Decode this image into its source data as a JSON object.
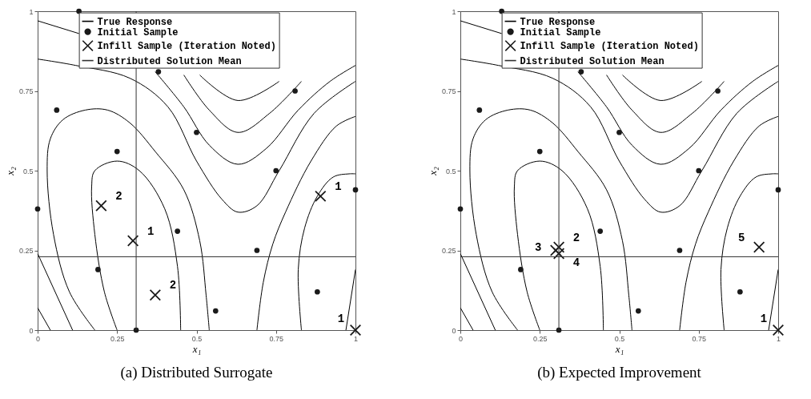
{
  "chart_data": [
    {
      "type": "scatter",
      "title": "(a) Distributed Surrogate",
      "xlabel": "x₁",
      "ylabel": "x₂",
      "xlim": [
        0,
        1
      ],
      "ylim": [
        0,
        1
      ],
      "xticks": [
        0,
        0.25,
        0.5,
        0.75,
        1
      ],
      "yticks": [
        0,
        0.25,
        0.5,
        0.75,
        1
      ],
      "grid": false,
      "legend": "top",
      "series": [
        {
          "name": "True Response",
          "type": "line",
          "color": "#000000",
          "x": [
            0.18,
            0.1,
            0.05,
            0.03,
            0.04,
            0.08,
            0.15,
            0.22,
            0.29,
            0.37,
            0.46,
            0.51,
            0.53,
            0.54
          ],
          "values": [
            0,
            0.12,
            0.3,
            0.5,
            0.6,
            0.66,
            0.69,
            0.69,
            0.65,
            0.56,
            0.44,
            0.28,
            0.11,
            0
          ]
        },
        {
          "type": "line",
          "color": "#000000",
          "x": [
            0.25,
            0.21,
            0.18,
            0.17,
            0.18,
            0.25,
            0.32,
            0.4,
            0.44,
            0.45
          ],
          "values": [
            0,
            0.12,
            0.3,
            0.45,
            0.5,
            0.53,
            0.5,
            0.38,
            0.2,
            0
          ]
        },
        {
          "type": "line",
          "color": "#000000",
          "x": [
            0,
            0.11
          ],
          "values": [
            0.24,
            0
          ]
        },
        {
          "type": "line",
          "color": "#000000",
          "x": [
            0,
            0.04
          ],
          "values": [
            0.07,
            0
          ]
        },
        {
          "type": "line",
          "color": "#000000",
          "x": [
            0.83,
            0.82,
            0.84,
            0.88,
            0.93,
            0.98,
            1
          ],
          "values": [
            0,
            0.19,
            0.32,
            0.42,
            0.48,
            0.49,
            0.49
          ]
        },
        {
          "type": "line",
          "color": "#000000",
          "x": [
            1,
            0.97
          ],
          "values": [
            0.19,
            0
          ]
        },
        {
          "type": "line",
          "color": "#000000",
          "x": [
            0.69,
            0.71,
            0.74,
            0.78,
            0.86,
            0.94,
            1
          ],
          "values": [
            0,
            0.15,
            0.27,
            0.37,
            0.53,
            0.64,
            0.67
          ]
        },
        {
          "type": "line",
          "color": "#000000",
          "x": [
            0,
            0.12,
            0.29,
            0.41,
            0.5,
            0.58,
            0.63,
            0.69,
            0.76,
            0.87,
            1
          ],
          "values": [
            0.85,
            0.83,
            0.79,
            0.7,
            0.53,
            0.41,
            0.37,
            0.39,
            0.5,
            0.68,
            0.78
          ]
        },
        {
          "type": "line",
          "color": "#000000",
          "x": [
            0.37,
            0.46,
            0.54,
            0.63,
            0.72,
            0.82,
            0.92,
            1
          ],
          "values": [
            0.81,
            0.7,
            0.58,
            0.52,
            0.57,
            0.69,
            0.78,
            0.83
          ]
        },
        {
          "type": "line",
          "color": "#000000",
          "x": [
            0.46,
            0.54,
            0.63,
            0.73,
            0.83
          ],
          "values": [
            0.8,
            0.69,
            0.62,
            0.68,
            0.78
          ]
        },
        {
          "type": "line",
          "color": "#000000",
          "x": [
            0.51,
            0.63,
            0.76
          ],
          "values": [
            0.8,
            0.72,
            0.78
          ]
        },
        {
          "type": "line",
          "color": "#000000",
          "x": [
            0,
            0.13
          ],
          "values": [
            0.97,
            0.93
          ]
        },
        {
          "name": "Initial Sample",
          "type": "scatter",
          "marker": "circle",
          "color": "#1a1a1a",
          "x": [
            0.13,
            0.06,
            0.25,
            0,
            0.19,
            0.31,
            0.44,
            0.5,
            0.56,
            0.69,
            0.75,
            0.81,
            0.88,
            1,
            0.38
          ],
          "values": [
            1,
            0.69,
            0.56,
            0.38,
            0.19,
            0,
            0.31,
            0.62,
            0.06,
            0.25,
            0.5,
            0.75,
            0.12,
            0.44,
            0.81
          ]
        },
        {
          "name": "Infill Sample (Iteration Noted)",
          "type": "scatter",
          "marker": "cross",
          "color": "#1a1a1a",
          "x": [
            0.2,
            0.3,
            0.37,
            0.89,
            1
          ],
          "values": [
            0.39,
            0.28,
            0.11,
            0.42,
            0
          ]
        },
        {
          "name": "Distributed Solution Mean",
          "type": "line",
          "color": "#333333",
          "x": [
            0.31,
            0.31
          ],
          "values": [
            0,
            1
          ]
        },
        {
          "type": "line",
          "color": "#333333",
          "x": [
            0,
            1
          ],
          "values": [
            0.23,
            0.23
          ]
        }
      ],
      "annotations": [
        {
          "text": "2",
          "x": 0.2,
          "y": 0.39
        },
        {
          "text": "1",
          "x": 0.3,
          "y": 0.28
        },
        {
          "text": "2",
          "x": 0.37,
          "y": 0.11
        },
        {
          "text": "1",
          "x": 0.89,
          "y": 0.42
        },
        {
          "text": "1",
          "x": 1,
          "y": 0
        }
      ]
    },
    {
      "type": "scatter",
      "title": "(b) Expected Improvement",
      "xlabel": "x₁",
      "ylabel": "x₂",
      "xlim": [
        0,
        1
      ],
      "ylim": [
        0,
        1
      ],
      "xticks": [
        0,
        0.25,
        0.5,
        0.75,
        1
      ],
      "yticks": [
        0,
        0.25,
        0.5,
        0.75,
        1
      ],
      "grid": false,
      "legend": "top",
      "series": [
        {
          "name": "True Response",
          "type": "line",
          "color": "#000000",
          "x": [
            0.18,
            0.1,
            0.05,
            0.03,
            0.04,
            0.08,
            0.15,
            0.22,
            0.29,
            0.37,
            0.46,
            0.51,
            0.53,
            0.54
          ],
          "values": [
            0,
            0.12,
            0.3,
            0.5,
            0.6,
            0.66,
            0.69,
            0.69,
            0.65,
            0.56,
            0.44,
            0.28,
            0.11,
            0
          ]
        },
        {
          "type": "line",
          "color": "#000000",
          "x": [
            0.25,
            0.21,
            0.18,
            0.17,
            0.18,
            0.25,
            0.32,
            0.4,
            0.44,
            0.45
          ],
          "values": [
            0,
            0.12,
            0.3,
            0.45,
            0.5,
            0.53,
            0.5,
            0.38,
            0.2,
            0
          ]
        },
        {
          "type": "line",
          "color": "#000000",
          "x": [
            0,
            0.11
          ],
          "values": [
            0.24,
            0
          ]
        },
        {
          "type": "line",
          "color": "#000000",
          "x": [
            0,
            0.04
          ],
          "values": [
            0.07,
            0
          ]
        },
        {
          "type": "line",
          "color": "#000000",
          "x": [
            0.83,
            0.82,
            0.84,
            0.88,
            0.93,
            0.98,
            1
          ],
          "values": [
            0,
            0.19,
            0.32,
            0.42,
            0.48,
            0.49,
            0.49
          ]
        },
        {
          "type": "line",
          "color": "#000000",
          "x": [
            1,
            0.97
          ],
          "values": [
            0.19,
            0
          ]
        },
        {
          "type": "line",
          "color": "#000000",
          "x": [
            0.69,
            0.71,
            0.74,
            0.78,
            0.86,
            0.94,
            1
          ],
          "values": [
            0,
            0.15,
            0.27,
            0.37,
            0.53,
            0.64,
            0.67
          ]
        },
        {
          "type": "line",
          "color": "#000000",
          "x": [
            0,
            0.12,
            0.29,
            0.41,
            0.5,
            0.58,
            0.63,
            0.69,
            0.76,
            0.87,
            1
          ],
          "values": [
            0.85,
            0.83,
            0.79,
            0.7,
            0.53,
            0.41,
            0.37,
            0.39,
            0.5,
            0.68,
            0.78
          ]
        },
        {
          "type": "line",
          "color": "#000000",
          "x": [
            0.37,
            0.46,
            0.54,
            0.63,
            0.72,
            0.82,
            0.92,
            1
          ],
          "values": [
            0.81,
            0.7,
            0.58,
            0.52,
            0.57,
            0.69,
            0.78,
            0.83
          ]
        },
        {
          "type": "line",
          "color": "#000000",
          "x": [
            0.46,
            0.54,
            0.63,
            0.73,
            0.83
          ],
          "values": [
            0.8,
            0.69,
            0.62,
            0.68,
            0.78
          ]
        },
        {
          "type": "line",
          "color": "#000000",
          "x": [
            0.51,
            0.63,
            0.76
          ],
          "values": [
            0.8,
            0.72,
            0.78
          ]
        },
        {
          "type": "line",
          "color": "#000000",
          "x": [
            0,
            0.13
          ],
          "values": [
            0.97,
            0.93
          ]
        },
        {
          "name": "Initial Sample",
          "type": "scatter",
          "marker": "circle",
          "color": "#1a1a1a",
          "x": [
            0.13,
            0.06,
            0.25,
            0,
            0.19,
            0.31,
            0.44,
            0.5,
            0.56,
            0.69,
            0.75,
            0.81,
            0.88,
            1,
            0.38
          ],
          "values": [
            1,
            0.69,
            0.56,
            0.38,
            0.19,
            0,
            0.31,
            0.62,
            0.06,
            0.25,
            0.5,
            0.75,
            0.12,
            0.44,
            0.81
          ]
        },
        {
          "name": "Infill Sample (Iteration Noted)",
          "type": "scatter",
          "marker": "cross",
          "color": "#1a1a1a",
          "x": [
            1,
            0.31,
            0.3,
            0.31,
            0.94
          ],
          "values": [
            0,
            0.26,
            0.25,
            0.24,
            0.26
          ]
        },
        {
          "name": "Distributed Solution Mean",
          "type": "line",
          "color": "#333333",
          "x": [
            0.31,
            0.31
          ],
          "values": [
            0,
            1
          ]
        },
        {
          "type": "line",
          "color": "#333333",
          "x": [
            0,
            1
          ],
          "values": [
            0.23,
            0.23
          ]
        }
      ],
      "annotations": [
        {
          "text": "1",
          "x": 1,
          "y": 0
        },
        {
          "text": "2",
          "x": 0.31,
          "y": 0.26
        },
        {
          "text": "3",
          "x": 0.3,
          "y": 0.25
        },
        {
          "text": "4",
          "x": 0.31,
          "y": 0.24
        },
        {
          "text": "5",
          "x": 0.94,
          "y": 0.26
        }
      ]
    }
  ]
}
